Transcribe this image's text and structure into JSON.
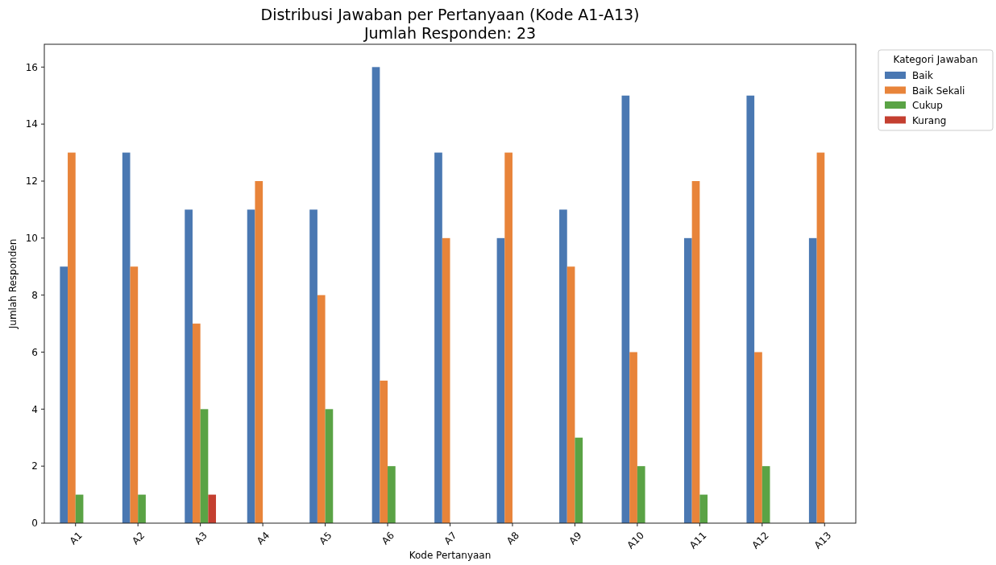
{
  "chart_data": {
    "type": "bar",
    "title": "Distribusi Jawaban per Pertanyaan (Kode A1-A13)",
    "subtitle": "Jumlah Responden: 23",
    "xlabel": "Kode Pertanyaan",
    "ylabel": "Jumlah Responden",
    "legend_title": "Kategori Jawaban",
    "categories": [
      "A1",
      "A2",
      "A3",
      "A4",
      "A5",
      "A6",
      "A7",
      "A8",
      "A9",
      "A10",
      "A11",
      "A12",
      "A13"
    ],
    "series": [
      {
        "name": "Baik",
        "color": "#4a78b2",
        "values": [
          9,
          13,
          11,
          11,
          11,
          16,
          13,
          10,
          11,
          15,
          10,
          15,
          10
        ]
      },
      {
        "name": "Baik Sekali",
        "color": "#e8843a",
        "values": [
          13,
          9,
          7,
          12,
          8,
          5,
          10,
          13,
          9,
          6,
          12,
          6,
          13
        ]
      },
      {
        "name": "Cukup",
        "color": "#5aa345",
        "values": [
          1,
          1,
          4,
          0,
          4,
          2,
          0,
          0,
          3,
          2,
          1,
          2,
          0
        ]
      },
      {
        "name": "Kurang",
        "color": "#c43f30",
        "values": [
          0,
          0,
          1,
          0,
          0,
          0,
          0,
          0,
          0,
          0,
          0,
          0,
          0
        ]
      }
    ],
    "ylim": [
      0,
      16.8
    ],
    "yticks": [
      0,
      2,
      4,
      6,
      8,
      10,
      12,
      14,
      16
    ],
    "legend": "top right",
    "grid": false
  }
}
